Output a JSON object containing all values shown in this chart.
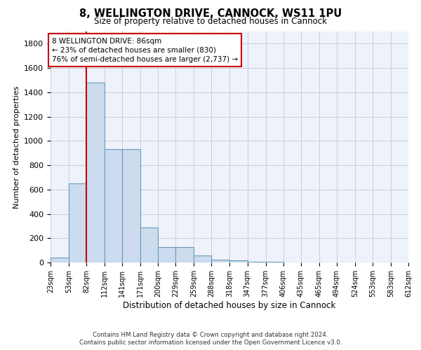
{
  "title": "8, WELLINGTON DRIVE, CANNOCK, WS11 1PU",
  "subtitle": "Size of property relative to detached houses in Cannock",
  "xlabel": "Distribution of detached houses by size in Cannock",
  "ylabel": "Number of detached properties",
  "bar_color": "#ccdcee",
  "bar_edge_color": "#6699bb",
  "grid_color": "#ccccdd",
  "background_color": "#eef2fa",
  "bins": [
    23,
    53,
    82,
    112,
    141,
    171,
    200,
    229,
    259,
    288,
    318,
    347,
    377,
    406,
    435,
    465,
    494,
    524,
    553,
    583,
    612
  ],
  "bin_labels": [
    "23sqm",
    "53sqm",
    "82sqm",
    "112sqm",
    "141sqm",
    "171sqm",
    "200sqm",
    "229sqm",
    "259sqm",
    "288sqm",
    "318sqm",
    "347sqm",
    "377sqm",
    "406sqm",
    "435sqm",
    "465sqm",
    "494sqm",
    "524sqm",
    "553sqm",
    "583sqm",
    "612sqm"
  ],
  "values": [
    38,
    650,
    1480,
    935,
    935,
    290,
    125,
    125,
    60,
    25,
    15,
    5,
    5,
    0,
    0,
    0,
    0,
    0,
    0,
    0
  ],
  "ylim": [
    0,
    1900
  ],
  "yticks": [
    0,
    200,
    400,
    600,
    800,
    1000,
    1200,
    1400,
    1600,
    1800
  ],
  "property_size_bin": 82,
  "vline_color": "#cc0000",
  "ann_title": "8 WELLINGTON DRIVE: 86sqm",
  "ann_line2": "← 23% of detached houses are smaller (830)",
  "ann_line3": "76% of semi-detached houses are larger (2,737) →",
  "annotation_box_color": "#cc0000",
  "footer_line1": "Contains HM Land Registry data © Crown copyright and database right 2024.",
  "footer_line2": "Contains public sector information licensed under the Open Government Licence v3.0."
}
